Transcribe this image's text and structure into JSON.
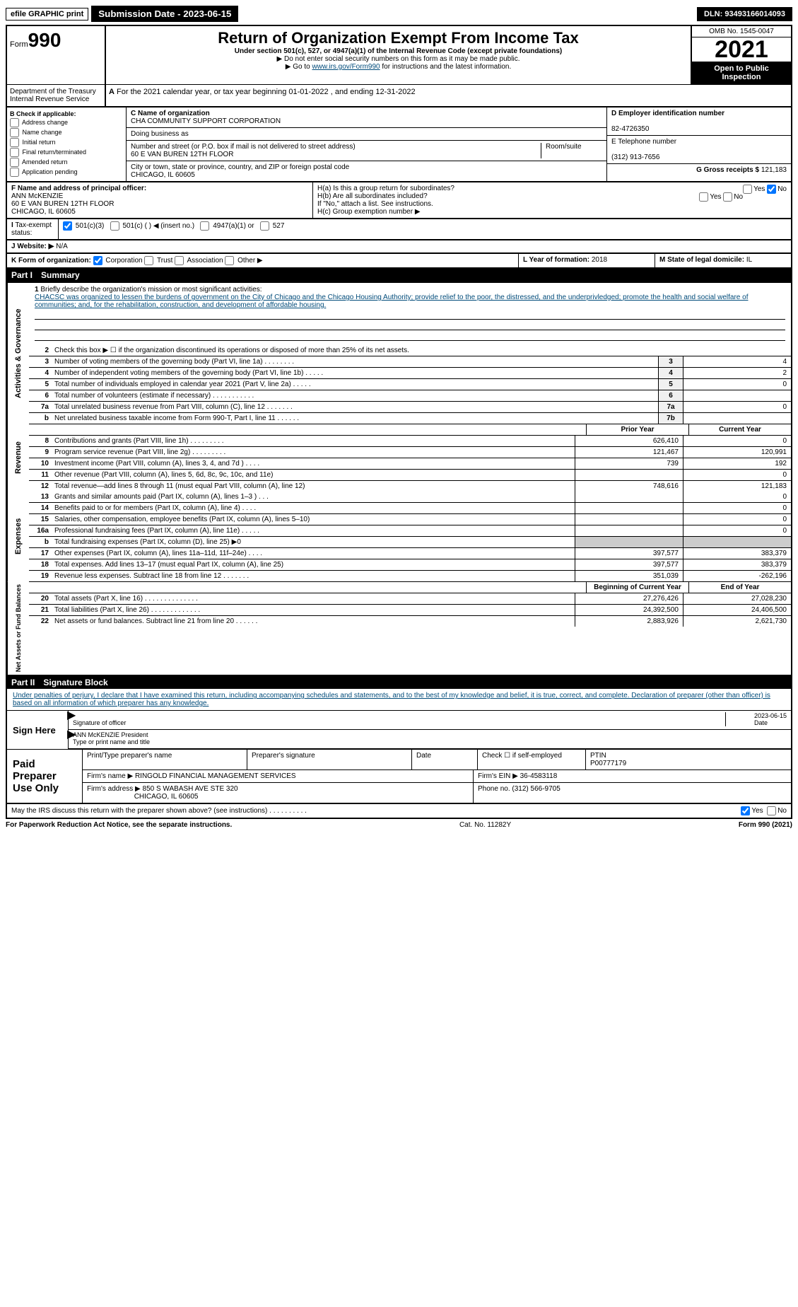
{
  "topbar": {
    "efile": "efile GRAPHIC print",
    "submission": "Submission Date - 2023-06-15",
    "dln": "DLN: 93493166014093"
  },
  "header": {
    "formword": "Form",
    "formnum": "990",
    "title": "Return of Organization Exempt From Income Tax",
    "sub": "Under section 501(c), 527, or 4947(a)(1) of the Internal Revenue Code (except private foundations)",
    "note1": "▶ Do not enter social security numbers on this form as it may be made public.",
    "note2_pre": "▶ Go to ",
    "note2_link": "www.irs.gov/Form990",
    "note2_post": " for instructions and the latest information.",
    "dept": "Department of the Treasury",
    "irs": "Internal Revenue Service",
    "omb": "OMB No. 1545-0047",
    "year": "2021",
    "openpub": "Open to Public Inspection"
  },
  "periodA": "For the 2021 calendar year, or tax year beginning 01-01-2022    , and ending 12-31-2022",
  "boxB": {
    "hdr": "B Check if applicable:",
    "items": [
      "Address change",
      "Name change",
      "Initial return",
      "Final return/terminated",
      "Amended return",
      "Application pending"
    ]
  },
  "boxC": {
    "label": "C Name of organization",
    "name": "CHA COMMUNITY SUPPORT CORPORATION",
    "dba": "Doing business as",
    "street_label": "Number and street (or P.O. box if mail is not delivered to street address)",
    "room_label": "Room/suite",
    "street": "60 E VAN BUREN 12TH FLOOR",
    "city_label": "City or town, state or province, country, and ZIP or foreign postal code",
    "city": "CHICAGO, IL  60605"
  },
  "boxD": {
    "label": "D Employer identification number",
    "ein": "82-4726350"
  },
  "boxE": {
    "label": "E Telephone number",
    "phone": "(312) 913-7656"
  },
  "boxG": {
    "label": "G Gross receipts $",
    "amt": "121,183"
  },
  "boxF": {
    "label": "F  Name and address of principal officer:",
    "name": "ANN McKENZIE",
    "addr1": "60 E VAN BUREN 12TH FLOOR",
    "addr2": "CHICAGO, IL  60605"
  },
  "boxH": {
    "a": "H(a)  Is this a group return for subordinates?",
    "b": "H(b)  Are all subordinates included?",
    "bnote": "If \"No,\" attach a list. See instructions.",
    "c": "H(c)  Group exemption number ▶",
    "yes": "Yes",
    "no": "No"
  },
  "boxI": {
    "label": "Tax-exempt status:",
    "opts": [
      "501(c)(3)",
      "501(c) (   ) ◀ (insert no.)",
      "4947(a)(1) or",
      "527"
    ]
  },
  "boxJ": {
    "label": "Website: ▶",
    "val": "  N/A"
  },
  "boxK": {
    "label": "K Form of organization:",
    "opts": [
      "Corporation",
      "Trust",
      "Association",
      "Other ▶"
    ]
  },
  "boxL": {
    "label": "L Year of formation:",
    "val": "2018"
  },
  "boxM": {
    "label": "M State of legal domicile:",
    "val": "IL"
  },
  "part1": {
    "hdr": "Part I",
    "title": "Summary"
  },
  "gov": {
    "tab": "Activities & Governance",
    "l1": "Briefly describe the organization's mission or most significant activities:",
    "mission": "CHACSC was organized to lessen the burdens of government on the City of Chicago and the Chicago Housing Authority; provide relief to the poor, the distressed, and the underprivledged; promote the health and social welfare of communities; and, for the rehabilitation, construction, and development of affordable housing.",
    "l2": "Check this box ▶ ☐  if the organization discontinued its operations or disposed of more than 25% of its net assets.",
    "rows": [
      {
        "n": "3",
        "t": "Number of voting members of the governing body (Part VI, line 1a)  .    .    .    .    .    .    .    .",
        "box": "3",
        "v": "4"
      },
      {
        "n": "4",
        "t": "Number of independent voting members of the governing body (Part VI, line 1b)  .    .    .    .    .",
        "box": "4",
        "v": "2"
      },
      {
        "n": "5",
        "t": "Total number of individuals employed in calendar year 2021 (Part V, line 2a)  .    .    .    .    .",
        "box": "5",
        "v": "0"
      },
      {
        "n": "6",
        "t": "Total number of volunteers (estimate if necessary)    .    .    .    .    .    .    .    .    .    .    .",
        "box": "6",
        "v": ""
      },
      {
        "n": "7a",
        "t": "Total unrelated business revenue from Part VIII, column (C), line 12  .    .    .    .    .    .    .",
        "box": "7a",
        "v": "0"
      },
      {
        "n": "b",
        "t": "Net unrelated business taxable income from Form 990-T, Part I, line 11  .    .    .    .    .    .",
        "box": "7b",
        "v": ""
      }
    ]
  },
  "colhdr": {
    "py": "Prior Year",
    "cy": "Current Year"
  },
  "rev": {
    "tab": "Revenue",
    "rows": [
      {
        "n": "8",
        "t": "Contributions and grants (Part VIII, line 1h)   .    .    .    .    .    .    .    .    .",
        "py": "626,410",
        "cy": "0"
      },
      {
        "n": "9",
        "t": "Program service revenue (Part VIII, line 2g)   .    .    .    .    .    .    .    .    .",
        "py": "121,467",
        "cy": "120,991"
      },
      {
        "n": "10",
        "t": "Investment income (Part VIII, column (A), lines 3, 4, and 7d )   .    .    .    .",
        "py": "739",
        "cy": "192"
      },
      {
        "n": "11",
        "t": "Other revenue (Part VIII, column (A), lines 5, 6d, 8c, 9c, 10c, and 11e)",
        "py": "",
        "cy": "0"
      },
      {
        "n": "12",
        "t": "Total revenue—add lines 8 through 11 (must equal Part VIII, column (A), line 12)",
        "py": "748,616",
        "cy": "121,183"
      }
    ]
  },
  "exp": {
    "tab": "Expenses",
    "rows": [
      {
        "n": "13",
        "t": "Grants and similar amounts paid (Part IX, column (A), lines 1–3 )   .    .    .",
        "py": "",
        "cy": "0"
      },
      {
        "n": "14",
        "t": "Benefits paid to or for members (Part IX, column (A), line 4)   .    .    .    .",
        "py": "",
        "cy": "0"
      },
      {
        "n": "15",
        "t": "Salaries, other compensation, employee benefits (Part IX, column (A), lines 5–10)",
        "py": "",
        "cy": "0"
      },
      {
        "n": "16a",
        "t": "Professional fundraising fees (Part IX, column (A), line 11e)  .    .    .    .    .",
        "py": "",
        "cy": "0"
      },
      {
        "n": "b",
        "t": "Total fundraising expenses (Part IX, column (D), line 25) ▶0",
        "py": "-",
        "cy": "-"
      },
      {
        "n": "17",
        "t": "Other expenses (Part IX, column (A), lines 11a–11d, 11f–24e)   .    .    .    .",
        "py": "397,577",
        "cy": "383,379"
      },
      {
        "n": "18",
        "t": "Total expenses. Add lines 13–17 (must equal Part IX, column (A), line 25)",
        "py": "397,577",
        "cy": "383,379"
      },
      {
        "n": "19",
        "t": "Revenue less expenses. Subtract line 18 from line 12  .    .    .    .    .    .    .",
        "py": "351,039",
        "cy": "-262,196"
      }
    ]
  },
  "colhdr2": {
    "py": "Beginning of Current Year",
    "cy": "End of Year"
  },
  "net": {
    "tab": "Net Assets or Fund Balances",
    "rows": [
      {
        "n": "20",
        "t": "Total assets (Part X, line 16)  .    .    .    .    .    .    .    .    .    .    .    .    .    .",
        "py": "27,276,426",
        "cy": "27,028,230"
      },
      {
        "n": "21",
        "t": "Total liabilities (Part X, line 26)  .    .    .    .    .    .    .    .    .    .    .    .    .",
        "py": "24,392,500",
        "cy": "24,406,500"
      },
      {
        "n": "22",
        "t": "Net assets or fund balances. Subtract line 21 from line 20  .    .    .    .    .    .",
        "py": "2,883,926",
        "cy": "2,621,730"
      }
    ]
  },
  "part2": {
    "hdr": "Part II",
    "title": "Signature Block"
  },
  "sig": {
    "intro": "Under penalties of perjury, I declare that I have examined this return, including accompanying schedules and statements, and to the best of my knowledge and belief, it is true, correct, and complete. Declaration of preparer (other than officer) is based on all information of which preparer has any knowledge.",
    "sign_here": "Sign Here",
    "date": "2023-06-15",
    "sig_of": "Signature of officer",
    "date_lbl": "Date",
    "name": "ANN McKENZIE  President",
    "name_lbl": "Type or print name and title"
  },
  "paid": {
    "label": "Paid Preparer Use Only",
    "h1": "Print/Type preparer's name",
    "h2": "Preparer's signature",
    "h3": "Date",
    "h4": "Check ☐ if self-employed",
    "h5": "PTIN",
    "ptin": "P00777179",
    "firm_lbl": "Firm's name    ▶",
    "firm": "RINGOLD FINANCIAL MANAGEMENT SERVICES",
    "ein_lbl": "Firm's EIN ▶",
    "ein": "36-4583118",
    "addr_lbl": "Firm's address ▶",
    "addr": "850 S WABASH AVE STE 320",
    "city": "CHICAGO, IL  60605",
    "phone_lbl": "Phone no.",
    "phone": "(312) 566-9705"
  },
  "discuss": {
    "q": "May the IRS discuss this return with the preparer shown above? (see instructions)   .    .    .    .    .    .    .    .    .    .",
    "yes": "Yes",
    "no": "No"
  },
  "footer": {
    "l": "For Paperwork Reduction Act Notice, see the separate instructions.",
    "m": "Cat. No. 11282Y",
    "r": "Form 990 (2021)"
  }
}
